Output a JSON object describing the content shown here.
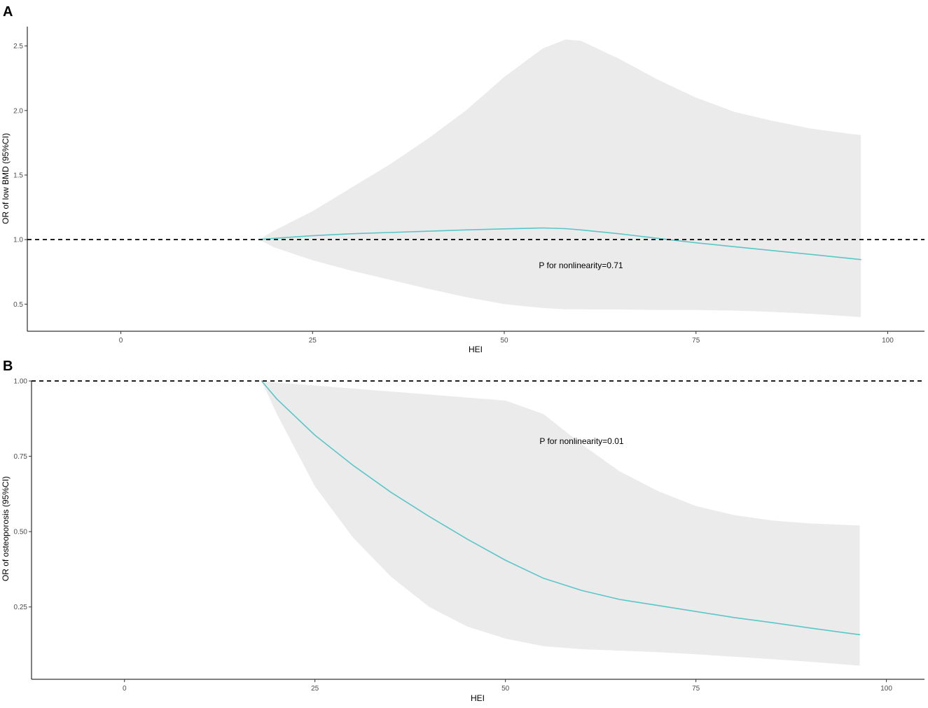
{
  "chart_data": [
    {
      "panel_label": "A",
      "type": "line",
      "xlabel": "HEI",
      "ylabel": "OR of low BMD (95%CI)",
      "xlim": [
        -12.2,
        104.8
      ],
      "ylim": [
        0.29,
        2.65
      ],
      "xticks": [
        0,
        25,
        50,
        75,
        100
      ],
      "xtick_labels": [
        "0",
        "25",
        "50",
        "75",
        "100"
      ],
      "yticks": [
        0.5,
        1.0,
        1.5,
        2.0,
        2.5
      ],
      "ytick_labels": [
        "0.5",
        "1.0",
        "1.5",
        "2.0",
        "2.5"
      ],
      "reference_line": 1.0,
      "annotation": {
        "text": "P for nonlinearity=0.71",
        "x": 60,
        "y": 0.8
      },
      "line_color": "#5bc6c9",
      "band_color": "#ebebeb",
      "grid": false,
      "series": [
        {
          "x": [
            18,
            20,
            25,
            30,
            35,
            40,
            45,
            50,
            55,
            58,
            60,
            65,
            70,
            75,
            80,
            85,
            90,
            95,
            96.5
          ],
          "y": [
            1.0,
            1.01,
            1.03,
            1.045,
            1.055,
            1.065,
            1.075,
            1.083,
            1.09,
            1.085,
            1.075,
            1.045,
            1.01,
            0.975,
            0.945,
            0.915,
            0.885,
            0.855,
            0.845
          ],
          "lower": [
            1.0,
            0.94,
            0.84,
            0.76,
            0.69,
            0.62,
            0.555,
            0.5,
            0.47,
            0.46,
            0.46,
            0.458,
            0.455,
            0.455,
            0.45,
            0.44,
            0.425,
            0.405,
            0.4
          ],
          "upper": [
            1.0,
            1.07,
            1.22,
            1.4,
            1.58,
            1.78,
            2.0,
            2.26,
            2.48,
            2.55,
            2.54,
            2.4,
            2.24,
            2.1,
            1.99,
            1.92,
            1.86,
            1.82,
            1.81
          ]
        }
      ]
    },
    {
      "panel_label": "B",
      "type": "line",
      "xlabel": "HEI",
      "ylabel": "OR of osteoporosis (95%CI)",
      "xlim": [
        -12.2,
        105
      ],
      "ylim": [
        0.01,
        1.0
      ],
      "xticks": [
        0,
        25,
        50,
        75,
        100
      ],
      "xtick_labels": [
        "0",
        "25",
        "50",
        "75",
        "100"
      ],
      "yticks": [
        0.25,
        0.5,
        0.75,
        1.0
      ],
      "ytick_labels": [
        "0.25",
        "0.50",
        "0.75",
        "1.00"
      ],
      "reference_line": 1.0,
      "annotation": {
        "text": "P for nonlinearity=0.01",
        "x": 60,
        "y": 0.8
      },
      "line_color": "#5bc6c9",
      "band_color": "#ebebeb",
      "grid": false,
      "series": [
        {
          "x": [
            18,
            20,
            25,
            30,
            35,
            40,
            45,
            50,
            55,
            60,
            65,
            70,
            75,
            80,
            85,
            90,
            95,
            96.5
          ],
          "y": [
            1.0,
            0.94,
            0.82,
            0.72,
            0.63,
            0.55,
            0.475,
            0.405,
            0.345,
            0.305,
            0.275,
            0.255,
            0.235,
            0.215,
            0.198,
            0.18,
            0.163,
            0.158
          ],
          "lower": [
            1.0,
            0.89,
            0.65,
            0.48,
            0.35,
            0.25,
            0.185,
            0.145,
            0.12,
            0.11,
            0.105,
            0.1,
            0.093,
            0.085,
            0.077,
            0.068,
            0.058,
            0.055
          ],
          "upper": [
            1.0,
            0.995,
            0.985,
            0.975,
            0.965,
            0.955,
            0.945,
            0.935,
            0.89,
            0.79,
            0.7,
            0.635,
            0.585,
            0.555,
            0.537,
            0.527,
            0.522,
            0.52
          ]
        }
      ]
    }
  ]
}
